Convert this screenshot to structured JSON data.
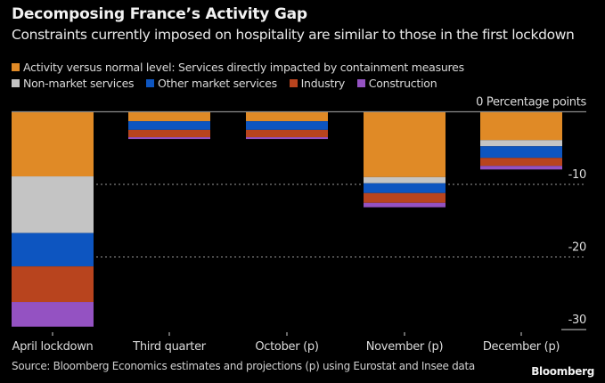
{
  "header": {
    "title": "Decomposing France’s Activity Gap",
    "subtitle": "Constraints currently imposed on hospitality are similar to those in the first lockdown"
  },
  "footer": {
    "source": "Source: Bloomberg Economics estimates and projections (p) using Eurostat and Insee data",
    "brand": "Bloomberg"
  },
  "chart_data": {
    "type": "bar",
    "stacked": true,
    "title": "Decomposing France’s Activity Gap",
    "subtitle": "Constraints currently imposed on hospitality are similar to those in the first lockdown",
    "legend_prefix": "Activity versus normal level:",
    "legend_placement": "top-left",
    "ylabel": "Percentage points",
    "y_axis_side": "right",
    "ylim": [
      -30,
      0
    ],
    "yticks": [
      0,
      -10,
      -20,
      -30
    ],
    "ytick_labels": [
      "0 Percentage points",
      "-10",
      "-20",
      "-30"
    ],
    "grid": "dotted horizontal",
    "categories": [
      "April lockdown",
      "Third quarter",
      "October (p)",
      "November (p)",
      "December (p)"
    ],
    "series": [
      {
        "name": "Services directly impacted by containment measures",
        "legend_label": "Activity versus normal level: Services directly impacted by containment measures",
        "color": "#e08a26",
        "values": [
          -8.9,
          -1.3,
          -1.3,
          -9.0,
          -3.9
        ]
      },
      {
        "name": "Non-market services",
        "legend_label": "Non-market services",
        "color": "#c4c4c4",
        "values": [
          -7.8,
          0.0,
          0.0,
          -0.85,
          -0.85
        ]
      },
      {
        "name": "Other market services",
        "legend_label": "Other market services",
        "color": "#0d55c0",
        "values": [
          -4.6,
          -1.2,
          -1.2,
          -1.35,
          -1.6
        ]
      },
      {
        "name": "Industry",
        "legend_label": "Industry",
        "color": "#b8441e",
        "values": [
          -4.9,
          -1.0,
          -1.0,
          -1.35,
          -1.1
        ]
      },
      {
        "name": "Construction",
        "legend_label": "Construction",
        "color": "#9452c2",
        "values": [
          -3.4,
          -0.25,
          -0.25,
          -0.6,
          -0.5
        ]
      }
    ]
  }
}
